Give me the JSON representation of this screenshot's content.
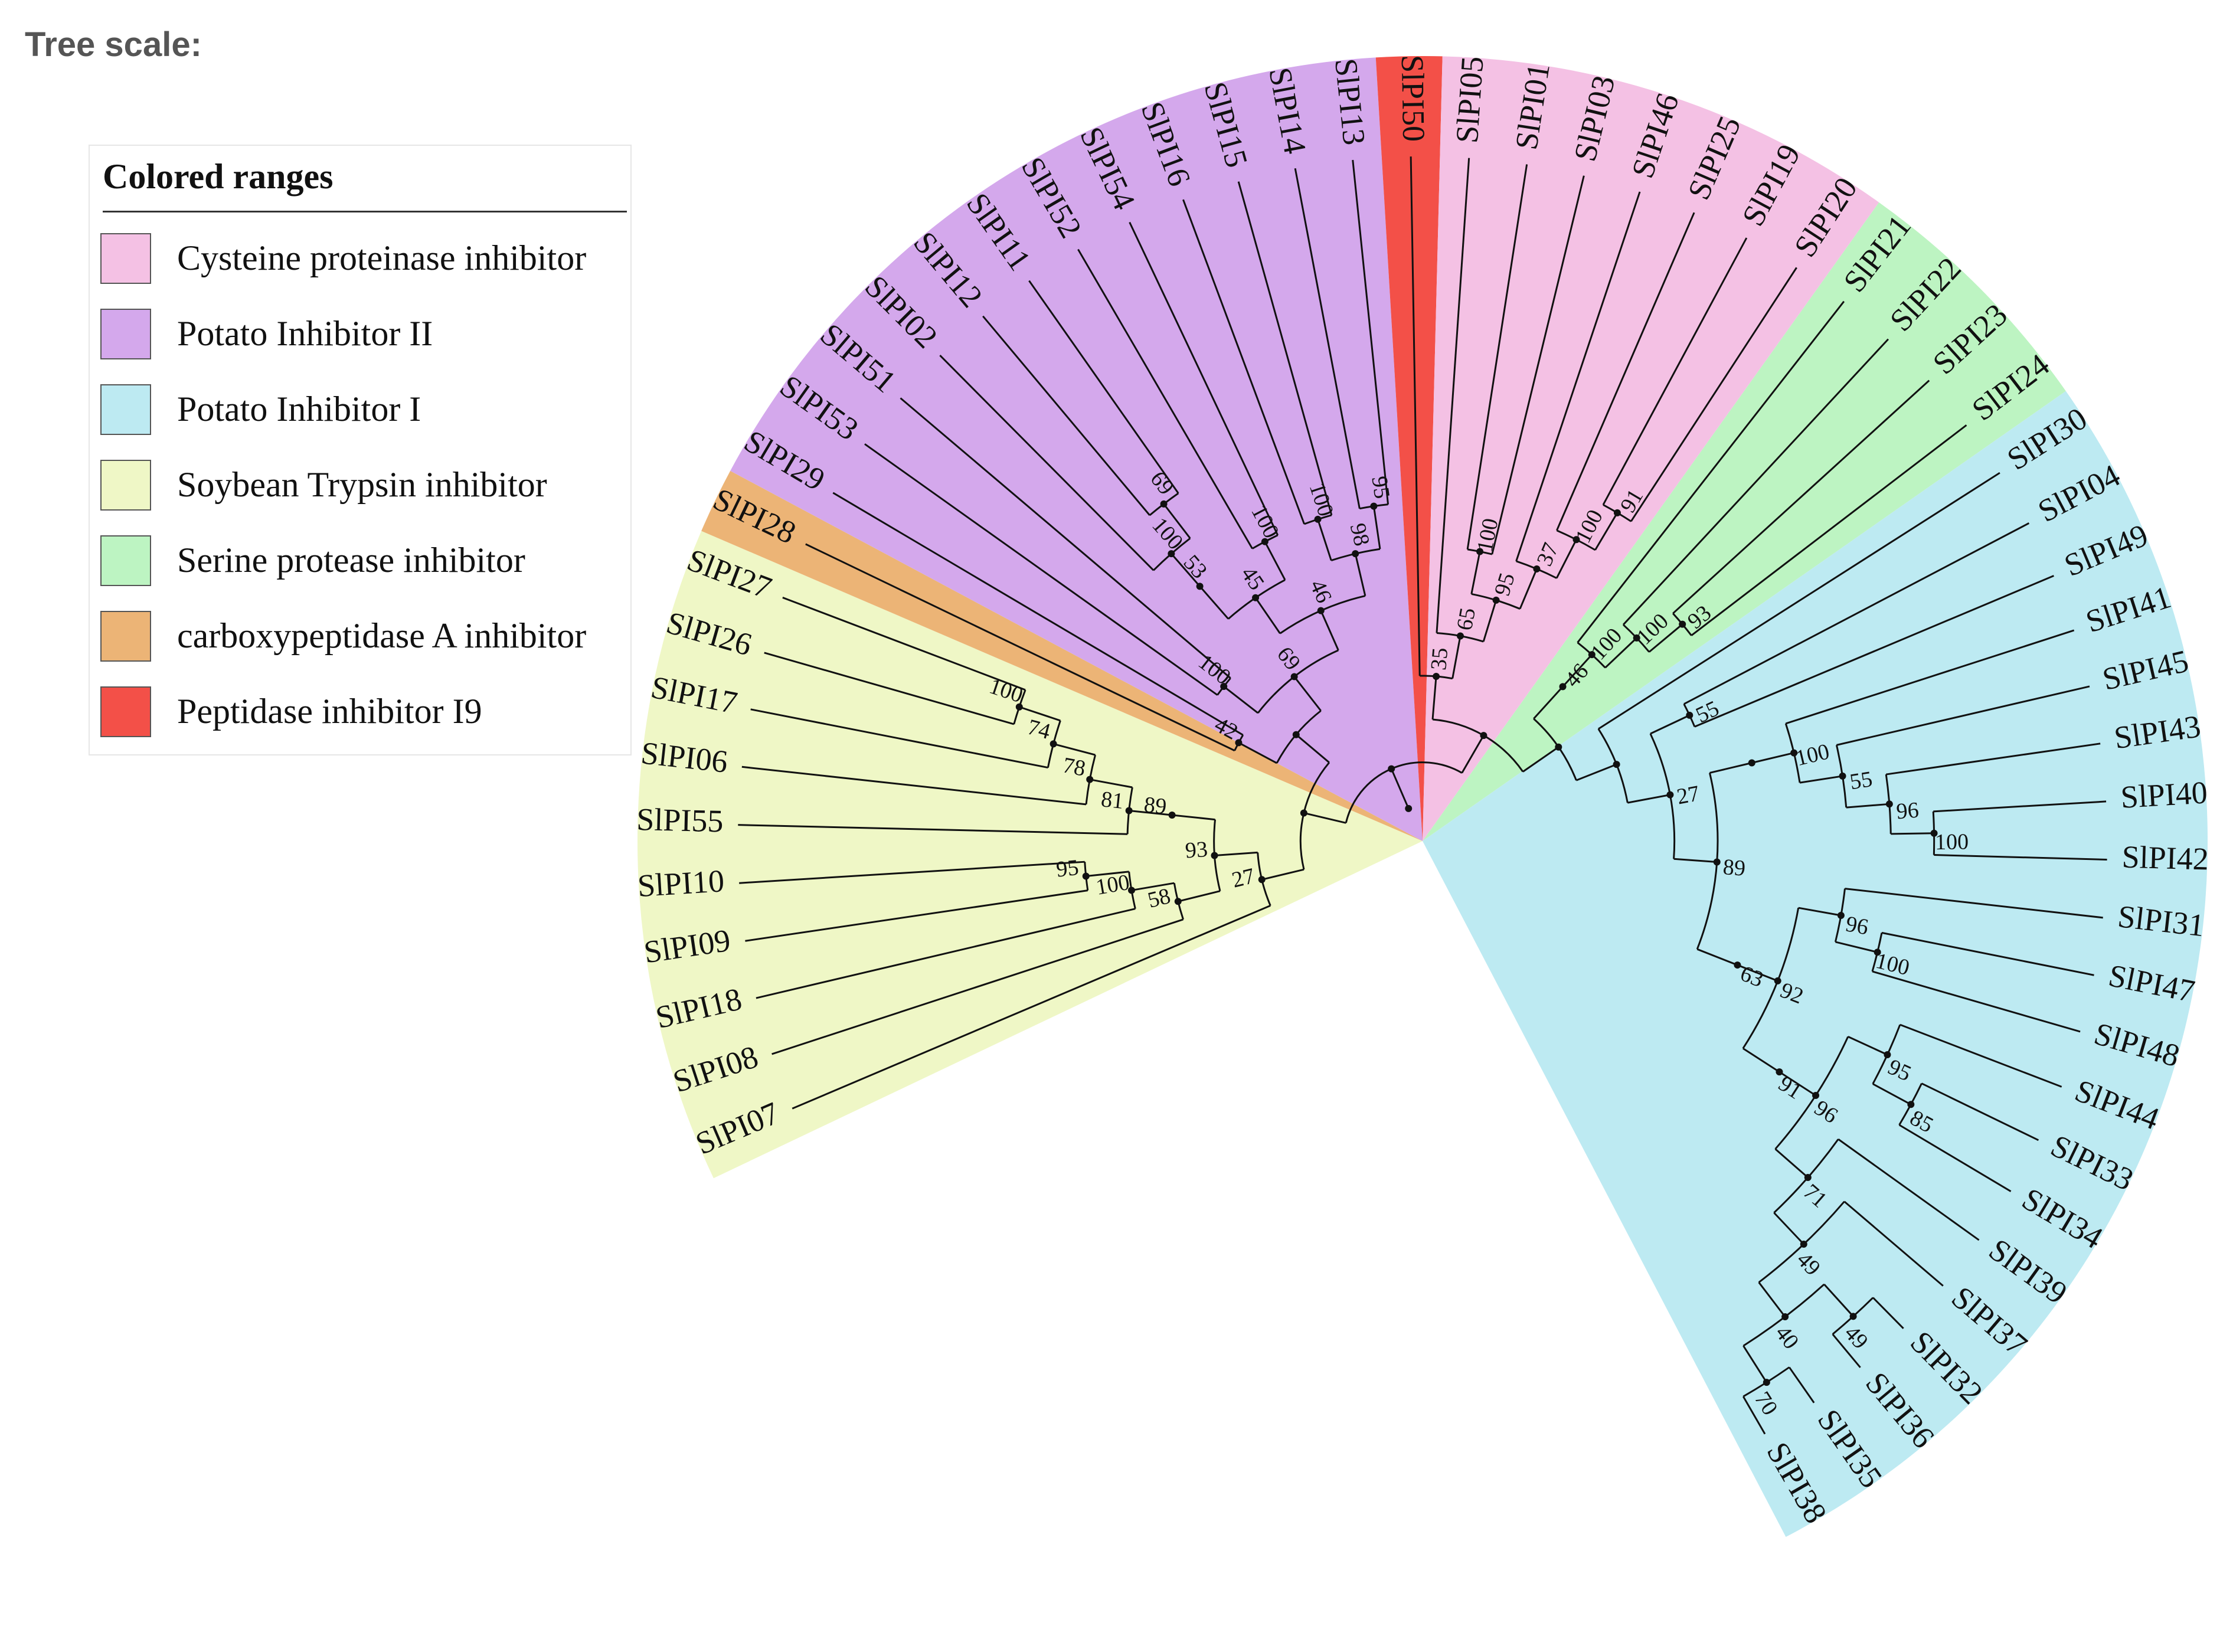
{
  "header": {
    "tree_scale_label": "Tree scale:"
  },
  "legend": {
    "title": "Colored ranges",
    "items": [
      {
        "label": "Cysteine proteinase inhibitor",
        "color": "#f4c1e4"
      },
      {
        "label": "Potato Inhibitor II",
        "color": "#d4a8ec"
      },
      {
        "label": "Potato Inhibitor I",
        "color": "#bdeaf2"
      },
      {
        "label": "Soybean Trypsin inhibitor",
        "color": "#eff7c6"
      },
      {
        "label": "Serine protease inhibitor",
        "color": "#bdf4c2"
      },
      {
        "label": "carboxypeptidase A inhibitor",
        "color": "#ecb476"
      },
      {
        "label": "Peptidase inhibitor I9",
        "color": "#f35048"
      }
    ]
  },
  "chart_data": {
    "type": "circular-phylogenetic-tree",
    "leaves_clockwise": [
      "SlPI07",
      "SlPI08",
      "SlPI18",
      "SlPI09",
      "SlPI10",
      "SlPI55",
      "SlPI06",
      "SlPI17",
      "SlPI26",
      "SlPI27",
      "SlPI28",
      "SlPI29",
      "SlPI53",
      "SlPI51",
      "SlPI02",
      "SlPI12",
      "SlPI11",
      "SlPI52",
      "SlPI54",
      "SlPI16",
      "SlPI15",
      "SlPI14",
      "SlPI13",
      "SlPI50",
      "SlPI05",
      "SlPI01",
      "SlPI03",
      "SlPI46",
      "SlPI25",
      "SlPI19",
      "SlPI20",
      "SlPI21",
      "SlPI22",
      "SlPI23",
      "SlPI24",
      "SlPI30",
      "SlPI04",
      "SlPI49",
      "SlPI41",
      "SlPI45",
      "SlPI43",
      "SlPI40",
      "SlPI42",
      "SlPI31",
      "SlPI47",
      "SlPI48",
      "SlPI44",
      "SlPI33",
      "SlPI34",
      "SlPI39",
      "SlPI37",
      "SlPI32",
      "SlPI36",
      "SlPI35",
      "SlPI38"
    ],
    "ranges": [
      {
        "group": "Soybean Trypsin inhibitor",
        "leaves": [
          "SlPI07",
          "SlPI08",
          "SlPI18",
          "SlPI09",
          "SlPI10",
          "SlPI55",
          "SlPI06",
          "SlPI17",
          "SlPI26",
          "SlPI27"
        ]
      },
      {
        "group": "carboxypeptidase A inhibitor",
        "leaves": [
          "SlPI28"
        ]
      },
      {
        "group": "Potato Inhibitor II",
        "leaves": [
          "SlPI29",
          "SlPI53",
          "SlPI51",
          "SlPI02",
          "SlPI12",
          "SlPI11",
          "SlPI52",
          "SlPI54",
          "SlPI16",
          "SlPI15",
          "SlPI14",
          "SlPI13"
        ]
      },
      {
        "group": "Peptidase inhibitor I9",
        "leaves": [
          "SlPI50"
        ]
      },
      {
        "group": "Cysteine proteinase inhibitor",
        "leaves": [
          "SlPI05",
          "SlPI01",
          "SlPI03",
          "SlPI46",
          "SlPI25",
          "SlPI19",
          "SlPI20"
        ]
      },
      {
        "group": "Serine protease inhibitor",
        "leaves": [
          "SlPI21",
          "SlPI22",
          "SlPI23",
          "SlPI24"
        ]
      },
      {
        "group": "Potato Inhibitor I",
        "leaves": [
          "SlPI30",
          "SlPI04",
          "SlPI49",
          "SlPI41",
          "SlPI45",
          "SlPI43",
          "SlPI40",
          "SlPI42",
          "SlPI31",
          "SlPI47",
          "SlPI48",
          "SlPI44",
          "SlPI33",
          "SlPI34",
          "SlPI39",
          "SlPI37",
          "SlPI32",
          "SlPI36",
          "SlPI35",
          "SlPI38"
        ]
      }
    ],
    "bootstrap_values": [
      "95",
      "100",
      "58",
      "89",
      "81",
      "78",
      "74",
      "100",
      "93",
      "27",
      "42",
      "100",
      "69",
      "53",
      "100",
      "69",
      "45",
      "100",
      "46",
      "100",
      "98",
      "95",
      "35",
      "65",
      "95",
      "37",
      "100",
      "91",
      "100",
      "27",
      "46",
      "100",
      "100",
      "93",
      "89",
      "63",
      "92",
      "100",
      "55",
      "96",
      "100",
      "55",
      "91",
      "96",
      "95",
      "85",
      "100",
      "96",
      "71",
      "49",
      "40",
      "49",
      "70"
    ],
    "newick": "((((SlPI07,((SlPI08,(SlPI18,(SlPI09,SlPI10)95)100)58,((SlPI55,(SlPI06,(SlPI17,(SlPI26,SlPI27)100)74)78)81)89)93)27,((SlPI28,SlPI29)42,((SlPI53,SlPI51)100,((((SlPI02,(SlPI12,SlPI11)69)100)53,(SlPI52,SlPI54)100)45,((SlPI16,SlPI15)100,(SlPI14,SlPI13)95)98)46)69)),((SlPI50,(SlPI05,((SlPI01,SlPI03)100,(SlPI46,(SlPI25,(SlPI19,SlPI20)91)100)37)95)65)35,(((SlPI21,(SlPI22,(SlPI23,SlPI24)93)100)100)46,(SlPI30,((SlPI04,SlPI49)55,(((SlPI41,(SlPI45,(SlPI43,(SlPI40,SlPI42)100)96)55)100),(((SlPI31,(SlPI47,SlPI48)100)96,(((SlPI44,(SlPI33,SlPI34)85)95,(SlPI39,(SlPI37,((SlPI32,SlPI36)49,(SlPI35,SlPI38)70)40)49)71)96)91)92)63)89)27)));"
  }
}
